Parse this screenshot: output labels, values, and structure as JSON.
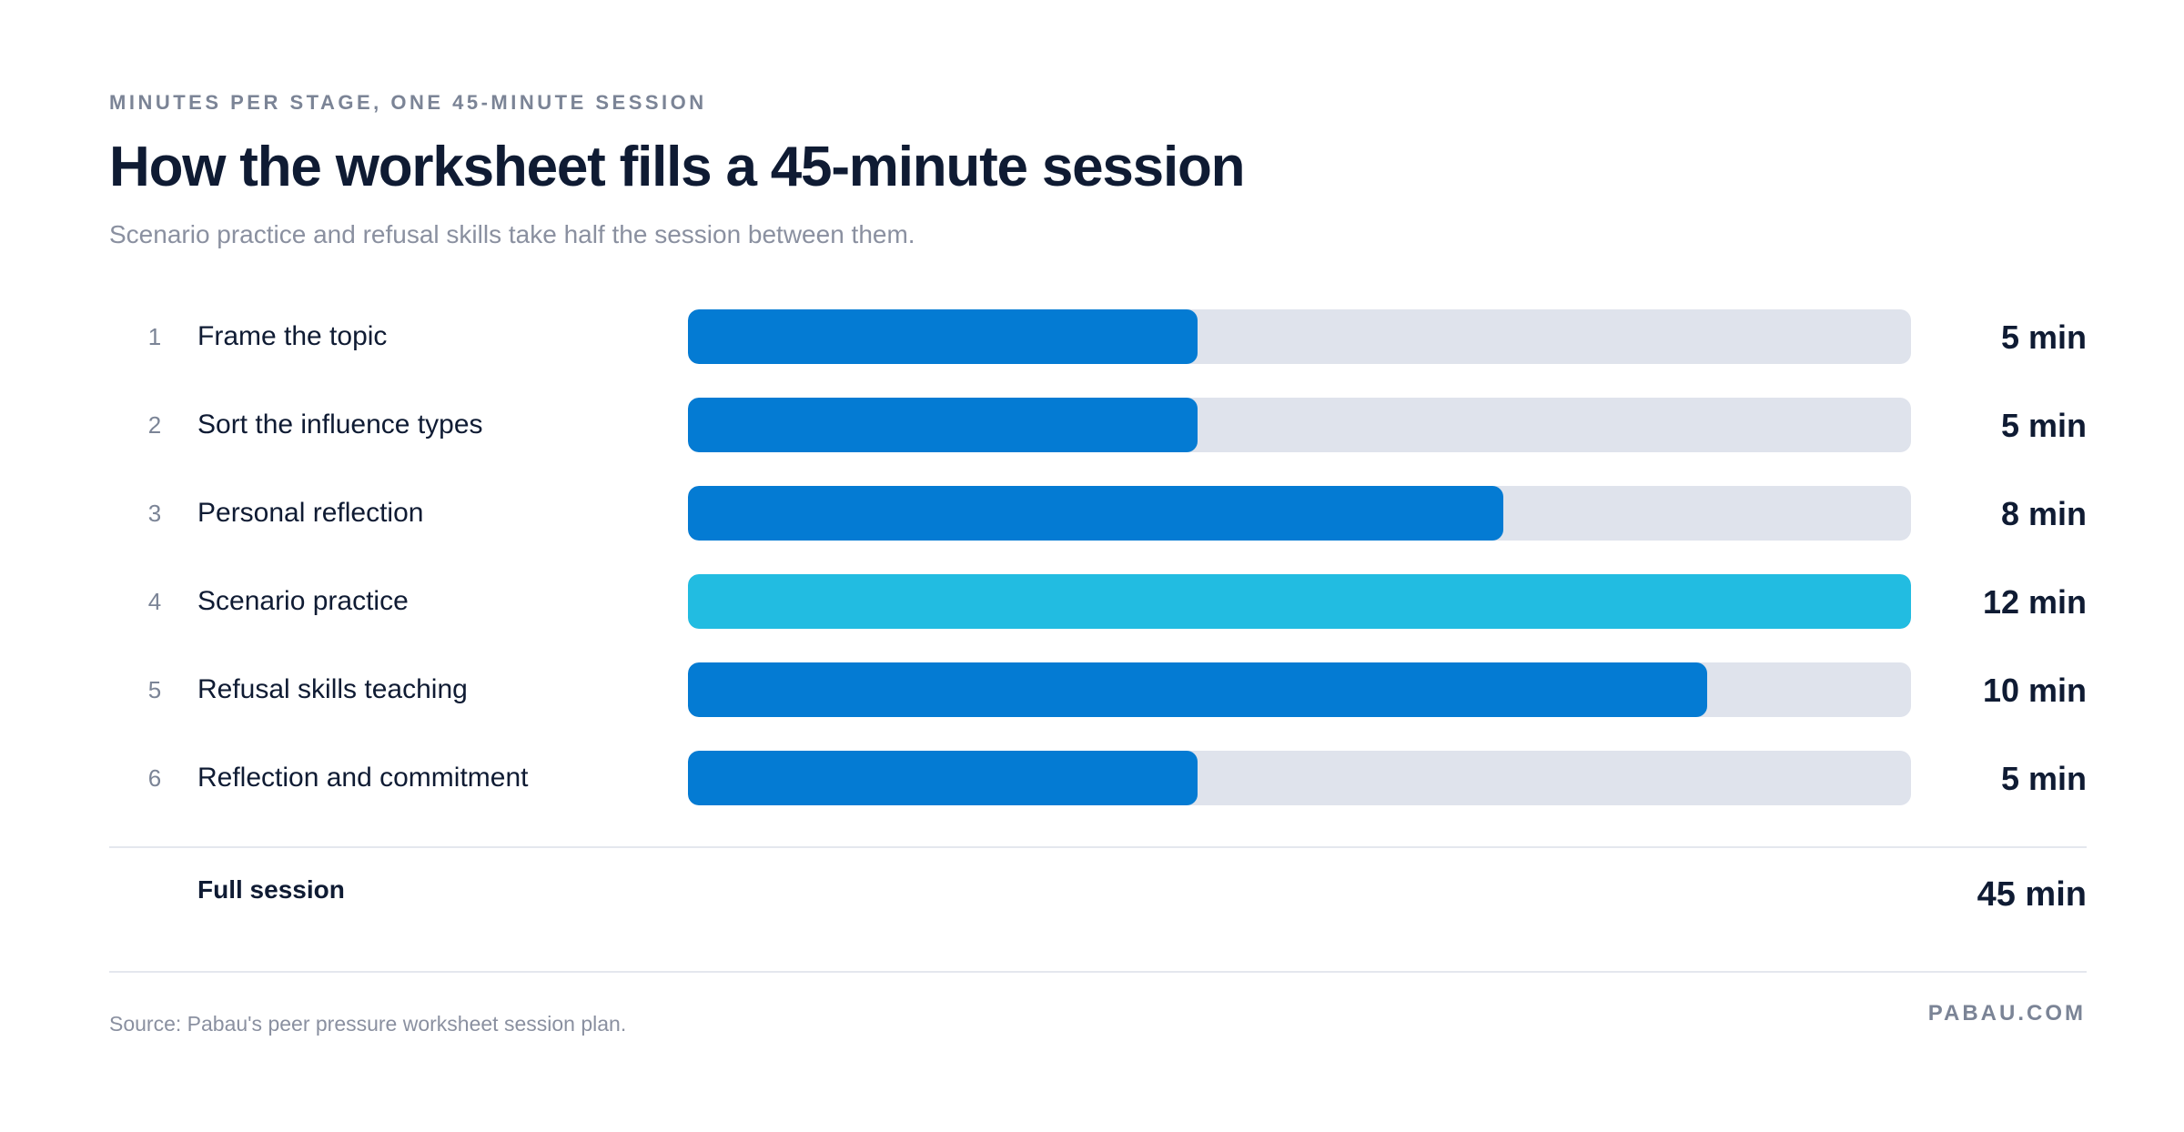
{
  "header": {
    "kicker": "MINUTES PER STAGE, ONE 45-MINUTE SESSION",
    "title": "How the worksheet fills a 45-minute session",
    "subtitle": "Scenario practice and refusal skills take half the session between them."
  },
  "colors": {
    "bar_default": "#047bd3",
    "bar_highlight": "#22bce1",
    "track": "#dfe3ec",
    "text_dark": "#0f1b33",
    "text_muted": "#7b8496"
  },
  "chart_data": {
    "type": "bar",
    "orientation": "horizontal",
    "title": "How the worksheet fills a 45-minute session",
    "xlim": [
      0,
      12
    ],
    "unit": "min",
    "highlight_index": 3,
    "rows": [
      {
        "num": "1",
        "label": "Frame the topic",
        "value": 5,
        "value_label": "5 min"
      },
      {
        "num": "2",
        "label": "Sort the influence types",
        "value": 5,
        "value_label": "5 min"
      },
      {
        "num": "3",
        "label": "Personal reflection",
        "value": 8,
        "value_label": "8 min"
      },
      {
        "num": "4",
        "label": "Scenario practice",
        "value": 12,
        "value_label": "12 min"
      },
      {
        "num": "5",
        "label": "Refusal skills teaching",
        "value": 10,
        "value_label": "10 min"
      },
      {
        "num": "6",
        "label": "Reflection and commitment",
        "value": 5,
        "value_label": "5 min"
      }
    ]
  },
  "total": {
    "label": "Full session",
    "value": "45 min"
  },
  "footer": {
    "source": "Source: Pabau's peer pressure worksheet session plan.",
    "brand": "PABAU.COM"
  }
}
